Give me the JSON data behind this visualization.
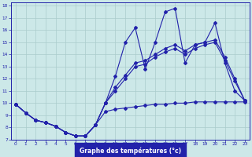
{
  "title": "Graphe des températures (°c)",
  "bg_color": "#cce8e8",
  "grid_color": "#aacccc",
  "line_color": "#2222aa",
  "xlim": [
    0,
    23
  ],
  "ylim": [
    7,
    18
  ],
  "yticks": [
    7,
    8,
    9,
    10,
    11,
    12,
    13,
    14,
    15,
    16,
    17,
    18
  ],
  "xticks": [
    0,
    1,
    2,
    3,
    4,
    5,
    6,
    7,
    8,
    9,
    10,
    11,
    12,
    13,
    14,
    15,
    16,
    17,
    18,
    19,
    20,
    21,
    22,
    23
  ],
  "hours": [
    0,
    1,
    2,
    3,
    4,
    5,
    6,
    7,
    8,
    9,
    10,
    11,
    12,
    13,
    14,
    15,
    16,
    17,
    18,
    19,
    20,
    21,
    22,
    23
  ],
  "line_max": [
    9.9,
    9.2,
    8.6,
    8.4,
    8.1,
    7.6,
    7.3,
    7.3,
    8.2,
    10.0,
    12.2,
    15.0,
    16.2,
    12.8,
    15.0,
    17.5,
    17.8,
    13.3,
    14.8,
    15.0,
    16.6,
    13.3,
    11.0,
    10.2
  ],
  "line_min": [
    9.9,
    9.2,
    8.6,
    8.4,
    8.1,
    7.6,
    7.3,
    7.3,
    8.2,
    9.3,
    9.5,
    9.6,
    9.7,
    9.8,
    9.9,
    9.9,
    10.0,
    10.0,
    10.1,
    10.1,
    10.1,
    10.1,
    10.1,
    10.1
  ],
  "line_avg1": [
    9.9,
    9.2,
    8.6,
    8.4,
    8.1,
    7.6,
    7.3,
    7.3,
    8.2,
    10.0,
    11.0,
    12.0,
    13.0,
    13.2,
    13.8,
    14.2,
    14.5,
    14.0,
    14.5,
    14.8,
    15.0,
    13.5,
    11.8,
    10.2
  ],
  "line_avg2": [
    9.9,
    9.2,
    8.6,
    8.4,
    8.1,
    7.6,
    7.3,
    7.3,
    8.2,
    10.0,
    11.3,
    12.3,
    13.3,
    13.5,
    14.0,
    14.5,
    14.8,
    14.3,
    14.8,
    15.0,
    15.2,
    13.8,
    12.0,
    10.2
  ]
}
